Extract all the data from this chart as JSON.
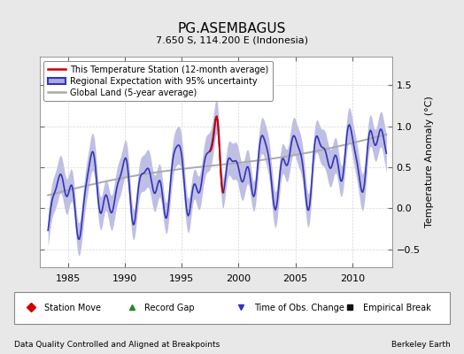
{
  "title": "PG.ASEMBAGUS",
  "subtitle": "7.650 S, 114.200 E (Indonesia)",
  "ylabel": "Temperature Anomaly (°C)",
  "xlabel_note": "Data Quality Controlled and Aligned at Breakpoints",
  "credit": "Berkeley Earth",
  "xlim": [
    1982.5,
    2013.5
  ],
  "ylim": [
    -0.72,
    1.85
  ],
  "yticks": [
    -0.5,
    0,
    0.5,
    1.0,
    1.5
  ],
  "xticks": [
    1985,
    1990,
    1995,
    2000,
    2005,
    2010
  ],
  "bg_color": "#e8e8e8",
  "plot_bg_color": "#ffffff",
  "regional_color": "#3333bb",
  "regional_fill_color": "#aaaadd",
  "global_color": "#aaaaaa",
  "station_color": "#cc0000",
  "legend_items": [
    "This Temperature Station (12-month average)",
    "Regional Expectation with 95% uncertainty",
    "Global Land (5-year average)"
  ],
  "marker_legend": [
    {
      "marker": "D",
      "color": "#cc0000",
      "label": "Station Move"
    },
    {
      "marker": "^",
      "color": "#228822",
      "label": "Record Gap"
    },
    {
      "marker": "v",
      "color": "#3333bb",
      "label": "Time of Obs. Change"
    },
    {
      "marker": "s",
      "color": "#111111",
      "label": "Empirical Break"
    }
  ]
}
